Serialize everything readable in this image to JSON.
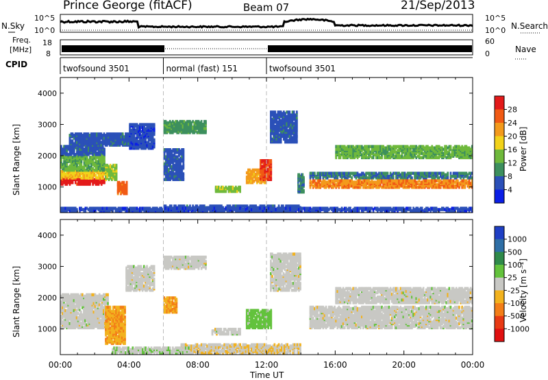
{
  "header": {
    "station": "Prince George (fitACF)",
    "beam": "Beam 07",
    "date": "21/Sep/2013"
  },
  "nsky_panel": {
    "left_label": "N.Sky",
    "y_ticks": [
      "10^5",
      "10^0"
    ],
    "right_label": "N.Search",
    "right_ticks": [
      "10^5",
      "10^0"
    ]
  },
  "freq_panel": {
    "left_label_line1": "Freq.",
    "left_label_line2": "[MHz]",
    "y_ticks": [
      "18",
      "8"
    ],
    "right_label": "Nave",
    "right_ticks": [
      "60",
      "0"
    ]
  },
  "cpid": {
    "label": "CPID",
    "segments": [
      {
        "name": "twofsound 3501",
        "start_hour": 0,
        "end_hour": 6
      },
      {
        "name": "normal (fast) 151",
        "start_hour": 6,
        "end_hour": 12
      },
      {
        "name": "twofsound 3501",
        "start_hour": 12,
        "end_hour": 24
      }
    ]
  },
  "power_panel": {
    "ylabel": "Slant Range [km]",
    "colorbar_label": "Power [dB]",
    "colorbar_ticks": [
      "28",
      "24",
      "20",
      "16",
      "12",
      "8",
      "4"
    ],
    "colors": [
      "#0a1ee6",
      "#2b50b8",
      "#3d8f5e",
      "#6fb93c",
      "#f2d21a",
      "#f39a1c",
      "#f15a14",
      "#e31a1a"
    ]
  },
  "velocity_panel": {
    "ylabel": "Slant Range [km]",
    "colorbar_label": "Velocity [m s⁻¹]",
    "colorbar_ticks": [
      "1000",
      "500",
      "100",
      "25",
      "-25",
      "-100",
      "-500",
      "-1000"
    ],
    "colors": [
      "#1f3fc4",
      "#2f6fa6",
      "#2f8a4a",
      "#63c23c",
      "#c8c8c4",
      "#f2b21e",
      "#f37e18",
      "#e83a14",
      "#e01010"
    ]
  },
  "x_axis": {
    "label": "Time UT",
    "ticks": [
      "00:00",
      "04:00",
      "08:00",
      "12:00",
      "16:00",
      "20:00",
      "00:00"
    ]
  },
  "chart_data": {
    "type": "heatmap",
    "title": "Prince George (fitACF)  Beam 07  21/Sep/2013",
    "xlabel": "Time UT",
    "ylabel": "Slant Range [km]",
    "xlim": [
      "00:00",
      "24:00"
    ],
    "ylim": [
      180,
      4500
    ],
    "y_ticks": [
      1000,
      2000,
      3000,
      4000
    ],
    "panels": [
      {
        "name": "Power",
        "unit": "dB",
        "color_range": [
          0,
          30
        ],
        "regions": [
          {
            "t": [
              0.0,
              2.6
            ],
            "r": [
              1050,
              1250
            ],
            "v": 28
          },
          {
            "t": [
              0.0,
              2.6
            ],
            "r": [
              1250,
              1500
            ],
            "v": 18
          },
          {
            "t": [
              0.0,
              2.6
            ],
            "r": [
              1500,
              2000
            ],
            "v": 12
          },
          {
            "t": [
              0.0,
              2.6
            ],
            "r": [
              2000,
              2300
            ],
            "v": 6
          },
          {
            "t": [
              2.6,
              3.3
            ],
            "r": [
              1200,
              1700
            ],
            "v": 14
          },
          {
            "t": [
              3.3,
              3.9
            ],
            "r": [
              750,
              1150
            ],
            "v": 24
          },
          {
            "t": [
              0.5,
              4.0
            ],
            "r": [
              2300,
              2700
            ],
            "v": 6
          },
          {
            "t": [
              4.0,
              5.5
            ],
            "r": [
              2200,
              3000
            ],
            "v": 5
          },
          {
            "t": [
              6.0,
              8.5
            ],
            "r": [
              2700,
              3100
            ],
            "v": 10
          },
          {
            "t": [
              6.0,
              7.2
            ],
            "r": [
              1200,
              2200
            ],
            "v": 6
          },
          {
            "t": [
              9.0,
              10.5
            ],
            "r": [
              820,
              1000
            ],
            "v": 14
          },
          {
            "t": [
              10.8,
              12.0
            ],
            "r": [
              1100,
              1550
            ],
            "v": 20
          },
          {
            "t": [
              11.6,
              12.3
            ],
            "r": [
              1200,
              1850
            ],
            "v": 26
          },
          {
            "t": [
              12.2,
              13.8
            ],
            "r": [
              2400,
              3400
            ],
            "v": 6
          },
          {
            "t": [
              13.8,
              14.2
            ],
            "r": [
              800,
              1400
            ],
            "v": 8
          },
          {
            "t": [
              14.5,
              24.0
            ],
            "r": [
              1250,
              1450
            ],
            "v": 8
          },
          {
            "t": [
              14.5,
              24.0
            ],
            "r": [
              950,
              1200
            ],
            "v": 22
          },
          {
            "t": [
              16.0,
              24.0
            ],
            "r": [
              1900,
              2300
            ],
            "v": 12
          },
          {
            "t": [
              6.0,
              14.0
            ],
            "r": [
              200,
              400
            ],
            "v": 6
          },
          {
            "t": [
              0.0,
              24.0
            ],
            "r": [
              200,
              320
            ],
            "v": 5
          }
        ]
      },
      {
        "name": "Velocity",
        "unit": "m s-1",
        "color_range": [
          -1000,
          1000
        ],
        "regions": [
          {
            "t": [
              0.0,
              2.8
            ],
            "r": [
              1000,
              2100
            ],
            "v": 0
          },
          {
            "t": [
              2.6,
              3.8
            ],
            "r": [
              500,
              1700
            ],
            "v": -300
          },
          {
            "t": [
              3.8,
              5.5
            ],
            "r": [
              2200,
              3000
            ],
            "v": 0
          },
          {
            "t": [
              6.0,
              6.8
            ],
            "r": [
              1500,
              2000
            ],
            "v": -300
          },
          {
            "t": [
              6.0,
              8.5
            ],
            "r": [
              2900,
              3300
            ],
            "v": 0
          },
          {
            "t": [
              8.8,
              10.5
            ],
            "r": [
              800,
              1000
            ],
            "v": 0
          },
          {
            "t": [
              10.8,
              12.3
            ],
            "r": [
              1000,
              1600
            ],
            "v": 200
          },
          {
            "t": [
              12.2,
              14.0
            ],
            "r": [
              2200,
              3400
            ],
            "v": 0
          },
          {
            "t": [
              14.5,
              24.0
            ],
            "r": [
              1000,
              1700
            ],
            "v": 0
          },
          {
            "t": [
              16.0,
              24.0
            ],
            "r": [
              1800,
              2300
            ],
            "v": 0
          },
          {
            "t": [
              7.0,
              14.0
            ],
            "r": [
              200,
              500
            ],
            "v": -80
          },
          {
            "t": [
              3.0,
              7.5
            ],
            "r": [
              200,
              400
            ],
            "v": 60
          }
        ]
      }
    ]
  }
}
